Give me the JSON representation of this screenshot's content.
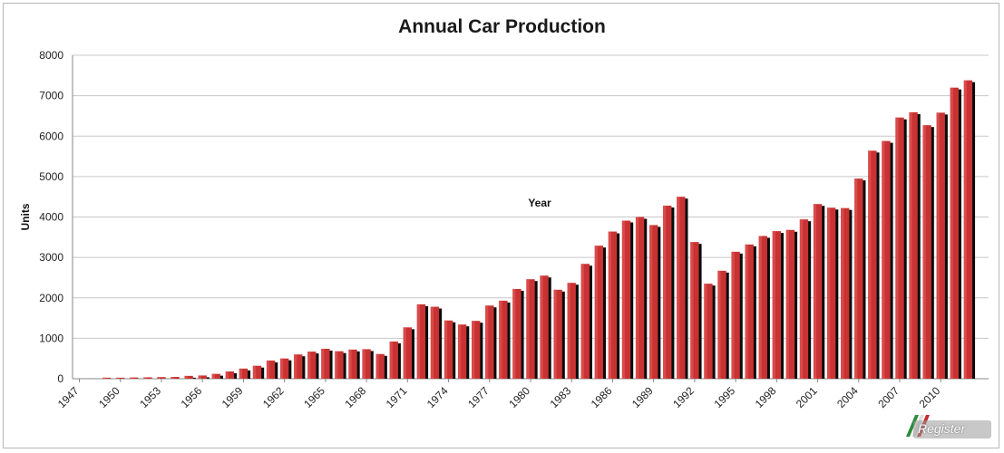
{
  "chart_data": {
    "type": "bar",
    "title": "Annual Car Production",
    "ylabel": "Units",
    "annotation": "Year",
    "ylim": [
      0,
      8000
    ],
    "yticks": [
      0,
      1000,
      2000,
      3000,
      4000,
      5000,
      6000,
      7000,
      8000
    ],
    "grid": true,
    "legend": "none",
    "categories": [
      1947,
      1948,
      1949,
      1950,
      1951,
      1952,
      1953,
      1954,
      1955,
      1956,
      1957,
      1958,
      1959,
      1960,
      1961,
      1962,
      1963,
      1964,
      1965,
      1966,
      1967,
      1968,
      1969,
      1970,
      1971,
      1972,
      1973,
      1974,
      1975,
      1976,
      1977,
      1978,
      1979,
      1980,
      1981,
      1982,
      1983,
      1984,
      1985,
      1986,
      1987,
      1988,
      1989,
      1990,
      1991,
      1992,
      1993,
      1994,
      1995,
      1996,
      1997,
      1998,
      1999,
      2000,
      2001,
      2002,
      2003,
      2004,
      2005,
      2006,
      2007,
      2008,
      2009,
      2010,
      2011,
      2012,
      2013
    ],
    "xtick_labels": [
      "1947",
      "1950",
      "1953",
      "1956",
      "1959",
      "1962",
      "1965",
      "1968",
      "1971",
      "1974",
      "1977",
      "1980",
      "1983",
      "1986",
      "1989",
      "1992",
      "1995",
      "1998",
      "2001",
      "2004",
      "2007",
      "2010"
    ],
    "values": [
      0,
      0,
      25,
      25,
      30,
      35,
      40,
      45,
      70,
      80,
      120,
      180,
      250,
      320,
      450,
      500,
      600,
      670,
      740,
      680,
      720,
      730,
      610,
      920,
      1270,
      1840,
      1780,
      1440,
      1340,
      1430,
      1810,
      1930,
      2220,
      2460,
      2550,
      2200,
      2370,
      2840,
      3290,
      3640,
      3910,
      4000,
      3800,
      4280,
      4500,
      3380,
      2350,
      2670,
      3140,
      3320,
      3530,
      3650,
      3680,
      3940,
      4320,
      4230,
      4220,
      4950,
      5640,
      5880,
      6460,
      6590,
      6270,
      6580,
      7200,
      7380,
      0
    ],
    "colors": {
      "bar": "#c83232",
      "bar_highlight": "#e45a5a",
      "shadow": "#0a0a0a",
      "grid": "#c8c8c8",
      "axis": "#888888"
    }
  },
  "watermark": {
    "text": "Register"
  }
}
